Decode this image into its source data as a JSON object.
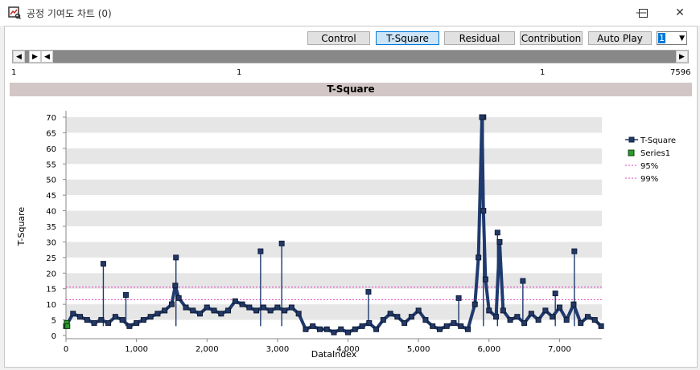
{
  "window": {
    "title": "공정 기여도 차트 (0)",
    "controls": {
      "minimize_glyph": "—",
      "maximize_glyph": "☐",
      "close_glyph": "✕"
    }
  },
  "toolbar": {
    "buttons": [
      {
        "label": "Control",
        "active": false
      },
      {
        "label": "T-Square",
        "active": true
      },
      {
        "label": "Residual",
        "active": false
      },
      {
        "label": "Contribution",
        "active": false
      },
      {
        "label": "Auto Play",
        "active": false
      }
    ],
    "combo_value": "1",
    "combo_arrow": "▼"
  },
  "scroller": {
    "prev_glyph": "◀",
    "next_glyph": "▶",
    "range_start": "1",
    "range_mid1": "1",
    "range_mid2": "1",
    "range_end": "7596"
  },
  "colors": {
    "series_line": "#1f3a6e",
    "series_marker": "#243866",
    "limit": "#e040c0",
    "series1": "#2a9a2a",
    "band": "#e6e6e6"
  },
  "chart_data": {
    "type": "line",
    "title": "T-Square",
    "xlabel": "DataIndex",
    "ylabel": "T-Square",
    "xlim": [
      0,
      7600
    ],
    "ylim": [
      0,
      70
    ],
    "x_ticks": [
      0,
      1000,
      2000,
      3000,
      4000,
      5000,
      6000,
      7000
    ],
    "x_tick_labels": [
      "0",
      "1,000",
      "2,000",
      "3,000",
      "4,000",
      "5,000",
      "6,000",
      "7,000"
    ],
    "y_ticks": [
      0,
      5,
      10,
      15,
      20,
      25,
      30,
      35,
      40,
      45,
      50,
      55,
      60,
      65,
      70
    ],
    "y_tick_labels": [
      "0",
      "5",
      "10",
      "15",
      "20",
      "25",
      "30",
      "35",
      "40",
      "45",
      "50",
      "55",
      "60",
      "65",
      "70"
    ],
    "legend_position": "right",
    "series": [
      {
        "name": "T-Square",
        "x": [
          0,
          100,
          200,
          300,
          400,
          500,
          600,
          700,
          800,
          900,
          1000,
          1100,
          1200,
          1300,
          1400,
          1500,
          1550,
          1600,
          1700,
          1800,
          1900,
          2000,
          2100,
          2200,
          2300,
          2400,
          2500,
          2600,
          2700,
          2800,
          2900,
          3000,
          3100,
          3200,
          3300,
          3400,
          3500,
          3600,
          3700,
          3800,
          3900,
          4000,
          4100,
          4200,
          4300,
          4400,
          4500,
          4600,
          4700,
          4800,
          4900,
          5000,
          5100,
          5200,
          5300,
          5400,
          5500,
          5600,
          5700,
          5800,
          5850,
          5900,
          5920,
          5950,
          6000,
          6100,
          6150,
          6200,
          6300,
          6400,
          6500,
          6600,
          6700,
          6800,
          6900,
          7000,
          7100,
          7200,
          7300,
          7400,
          7500,
          7590
        ],
        "y": [
          3,
          7,
          6,
          5,
          4,
          5,
          4,
          6,
          5,
          3,
          4,
          5,
          6,
          7,
          8,
          10,
          16,
          12,
          9,
          8,
          7,
          9,
          8,
          7,
          8,
          11,
          10,
          9,
          8,
          9,
          8,
          9,
          8,
          9,
          7,
          2,
          3,
          2,
          2,
          1,
          2,
          1,
          2,
          3,
          4,
          2,
          5,
          7,
          6,
          4,
          6,
          8,
          5,
          3,
          2,
          3,
          4,
          3,
          2,
          10,
          25,
          70,
          40,
          18,
          8,
          6,
          30,
          8,
          5,
          6,
          4,
          7,
          5,
          8,
          6,
          9,
          5,
          10,
          4,
          6,
          5,
          3
        ]
      },
      {
        "name": "Series1",
        "x": [
          10,
          20
        ],
        "y": [
          4,
          3
        ]
      },
      {
        "name": "95%",
        "value": 11.5
      },
      {
        "name": "99%",
        "value": 15.5
      }
    ],
    "spikes": [
      {
        "x": 530,
        "y": 23
      },
      {
        "x": 850,
        "y": 13
      },
      {
        "x": 1560,
        "y": 25
      },
      {
        "x": 2760,
        "y": 27
      },
      {
        "x": 3060,
        "y": 29.5
      },
      {
        "x": 4290,
        "y": 14
      },
      {
        "x": 5570,
        "y": 12
      },
      {
        "x": 5920,
        "y": 70
      },
      {
        "x": 6120,
        "y": 33
      },
      {
        "x": 6480,
        "y": 17.5
      },
      {
        "x": 6940,
        "y": 13.5
      },
      {
        "x": 7210,
        "y": 27
      }
    ]
  }
}
